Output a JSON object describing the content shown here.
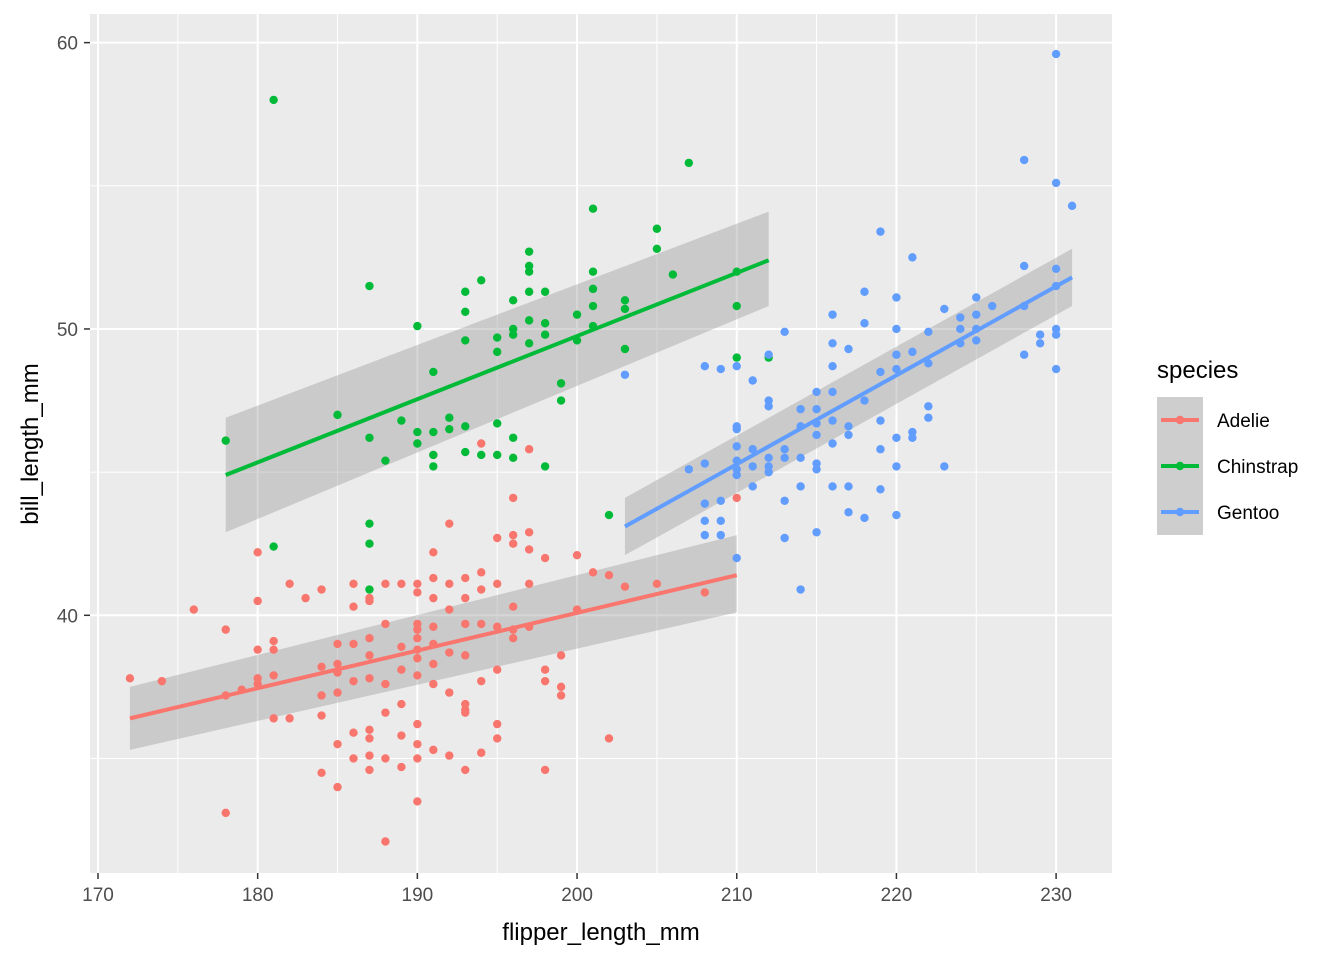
{
  "chart_data": {
    "type": "scatter",
    "xlabel": "flipper_length_mm",
    "ylabel": "bill_length_mm",
    "xlim": [
      169.5,
      233.5
    ],
    "ylim": [
      31.0,
      61.0
    ],
    "xticks": [
      170,
      180,
      190,
      200,
      210,
      220,
      230
    ],
    "yticks": [
      40,
      50,
      60
    ],
    "grid": true,
    "legend": {
      "title": "species",
      "placement": "right"
    },
    "background": "#EBEBEB",
    "band_color": "#999999",
    "series": [
      {
        "name": "Adelie",
        "color": "#F8766D",
        "fit": {
          "x": [
            172,
            210
          ],
          "y": [
            36.4,
            41.4
          ],
          "se_lower": [
            35.3,
            40.1
          ],
          "se_upper": [
            37.5,
            42.8
          ]
        },
        "points": [
          [
            172,
            37.8
          ],
          [
            174,
            37.7
          ],
          [
            176,
            40.2
          ],
          [
            178,
            39.5
          ],
          [
            178,
            37.2
          ],
          [
            178,
            33.1
          ],
          [
            179,
            37.4
          ],
          [
            180,
            42.2
          ],
          [
            180,
            40.5
          ],
          [
            180,
            38.8
          ],
          [
            180,
            37.8
          ],
          [
            180,
            37.6
          ],
          [
            181,
            39.1
          ],
          [
            181,
            38.8
          ],
          [
            181,
            37.9
          ],
          [
            181,
            36.4
          ],
          [
            182,
            41.1
          ],
          [
            182,
            36.4
          ],
          [
            183,
            40.6
          ],
          [
            184,
            40.9
          ],
          [
            184,
            38.2
          ],
          [
            184,
            37.2
          ],
          [
            184,
            36.5
          ],
          [
            184,
            34.5
          ],
          [
            185,
            39.0
          ],
          [
            185,
            38.3
          ],
          [
            185,
            38.0
          ],
          [
            185,
            37.3
          ],
          [
            185,
            35.5
          ],
          [
            185,
            34.0
          ],
          [
            186,
            41.1
          ],
          [
            186,
            40.3
          ],
          [
            186,
            39.0
          ],
          [
            186,
            37.7
          ],
          [
            186,
            35.9
          ],
          [
            186,
            35.0
          ],
          [
            187,
            40.6
          ],
          [
            187,
            40.5
          ],
          [
            187,
            39.2
          ],
          [
            187,
            38.6
          ],
          [
            187,
            37.8
          ],
          [
            187,
            36.0
          ],
          [
            187,
            35.7
          ],
          [
            187,
            34.6
          ],
          [
            187,
            35.1
          ],
          [
            188,
            41.1
          ],
          [
            188,
            39.7
          ],
          [
            188,
            37.6
          ],
          [
            188,
            36.6
          ],
          [
            188,
            35.0
          ],
          [
            188,
            32.1
          ],
          [
            189,
            41.1
          ],
          [
            189,
            38.9
          ],
          [
            189,
            38.1
          ],
          [
            189,
            36.9
          ],
          [
            189,
            35.8
          ],
          [
            189,
            34.7
          ],
          [
            190,
            41.1
          ],
          [
            190,
            40.8
          ],
          [
            190,
            39.7
          ],
          [
            190,
            39.5
          ],
          [
            190,
            39.2
          ],
          [
            190,
            38.8
          ],
          [
            190,
            38.5
          ],
          [
            190,
            37.9
          ],
          [
            190,
            36.2
          ],
          [
            190,
            35.5
          ],
          [
            190,
            35.0
          ],
          [
            190,
            33.5
          ],
          [
            191,
            45.6
          ],
          [
            191,
            42.2
          ],
          [
            191,
            41.3
          ],
          [
            191,
            40.6
          ],
          [
            191,
            39.6
          ],
          [
            191,
            39.0
          ],
          [
            191,
            38.3
          ],
          [
            191,
            37.6
          ],
          [
            191,
            35.3
          ],
          [
            192,
            43.2
          ],
          [
            192,
            41.1
          ],
          [
            192,
            40.2
          ],
          [
            192,
            38.7
          ],
          [
            192,
            37.3
          ],
          [
            192,
            35.1
          ],
          [
            193,
            41.3
          ],
          [
            193,
            40.6
          ],
          [
            193,
            39.7
          ],
          [
            193,
            38.6
          ],
          [
            193,
            36.9
          ],
          [
            193,
            36.7
          ],
          [
            193,
            36.6
          ],
          [
            193,
            34.6
          ],
          [
            194,
            46.0
          ],
          [
            194,
            41.5
          ],
          [
            194,
            40.9
          ],
          [
            194,
            39.7
          ],
          [
            194,
            37.7
          ],
          [
            194,
            35.2
          ],
          [
            195,
            42.7
          ],
          [
            195,
            41.1
          ],
          [
            195,
            39.6
          ],
          [
            195,
            38.1
          ],
          [
            195,
            36.2
          ],
          [
            195,
            35.7
          ],
          [
            196,
            44.1
          ],
          [
            196,
            42.8
          ],
          [
            196,
            42.5
          ],
          [
            196,
            40.3
          ],
          [
            196,
            39.5
          ],
          [
            196,
            39.2
          ],
          [
            197,
            45.8
          ],
          [
            197,
            42.9
          ],
          [
            197,
            42.3
          ],
          [
            197,
            41.1
          ],
          [
            197,
            39.6
          ],
          [
            198,
            42.0
          ],
          [
            198,
            38.1
          ],
          [
            198,
            37.7
          ],
          [
            198,
            34.6
          ],
          [
            199,
            38.6
          ],
          [
            199,
            37.5
          ],
          [
            199,
            37.2
          ],
          [
            200,
            42.1
          ],
          [
            200,
            40.2
          ],
          [
            201,
            41.5
          ],
          [
            202,
            41.4
          ],
          [
            202,
            35.7
          ],
          [
            203,
            41.0
          ],
          [
            205,
            41.1
          ],
          [
            208,
            40.8
          ],
          [
            210,
            44.1
          ]
        ]
      },
      {
        "name": "Chinstrap",
        "color": "#00BA38",
        "fit": {
          "x": [
            178,
            212
          ],
          "y": [
            44.9,
            52.4
          ],
          "se_lower": [
            42.9,
            50.8
          ],
          "se_upper": [
            46.9,
            54.1
          ]
        },
        "points": [
          [
            178,
            46.1
          ],
          [
            181,
            58.0
          ],
          [
            181,
            42.4
          ],
          [
            185,
            47.0
          ],
          [
            187,
            51.5
          ],
          [
            187,
            46.2
          ],
          [
            187,
            43.2
          ],
          [
            187,
            42.5
          ],
          [
            187,
            40.9
          ],
          [
            188,
            45.4
          ],
          [
            189,
            46.8
          ],
          [
            190,
            50.1
          ],
          [
            190,
            46.4
          ],
          [
            190,
            46.0
          ],
          [
            191,
            48.5
          ],
          [
            191,
            46.4
          ],
          [
            191,
            45.6
          ],
          [
            191,
            45.2
          ],
          [
            192,
            46.9
          ],
          [
            192,
            46.5
          ],
          [
            193,
            51.3
          ],
          [
            193,
            50.6
          ],
          [
            193,
            49.6
          ],
          [
            193,
            46.6
          ],
          [
            193,
            45.7
          ],
          [
            194,
            51.7
          ],
          [
            194,
            45.6
          ],
          [
            195,
            49.7
          ],
          [
            195,
            49.2
          ],
          [
            195,
            46.7
          ],
          [
            195,
            45.6
          ],
          [
            196,
            51.0
          ],
          [
            196,
            50.0
          ],
          [
            196,
            49.8
          ],
          [
            196,
            46.2
          ],
          [
            196,
            45.5
          ],
          [
            197,
            52.7
          ],
          [
            197,
            52.2
          ],
          [
            197,
            52.0
          ],
          [
            197,
            51.3
          ],
          [
            197,
            50.3
          ],
          [
            197,
            49.5
          ],
          [
            198,
            51.3
          ],
          [
            198,
            50.2
          ],
          [
            198,
            49.8
          ],
          [
            198,
            45.2
          ],
          [
            199,
            48.1
          ],
          [
            199,
            47.5
          ],
          [
            200,
            50.5
          ],
          [
            200,
            49.6
          ],
          [
            201,
            54.2
          ],
          [
            201,
            52.0
          ],
          [
            201,
            51.4
          ],
          [
            201,
            50.8
          ],
          [
            201,
            50.1
          ],
          [
            202,
            43.5
          ],
          [
            203,
            51.0
          ],
          [
            203,
            50.7
          ],
          [
            203,
            49.3
          ],
          [
            205,
            53.5
          ],
          [
            205,
            52.8
          ],
          [
            206,
            51.9
          ],
          [
            207,
            55.8
          ],
          [
            210,
            52.0
          ],
          [
            210,
            50.8
          ],
          [
            210,
            49.0
          ],
          [
            212,
            49.0
          ]
        ]
      },
      {
        "name": "Gentoo",
        "color": "#619CFF",
        "fit": {
          "x": [
            203,
            231
          ],
          "y": [
            43.1,
            51.8
          ],
          "se_lower": [
            42.1,
            50.8
          ],
          "se_upper": [
            44.1,
            52.8
          ]
        },
        "points": [
          [
            203,
            48.4
          ],
          [
            207,
            45.1
          ],
          [
            208,
            48.7
          ],
          [
            208,
            45.3
          ],
          [
            208,
            43.9
          ],
          [
            208,
            43.3
          ],
          [
            208,
            42.8
          ],
          [
            209,
            48.6
          ],
          [
            209,
            44.0
          ],
          [
            209,
            43.3
          ],
          [
            209,
            42.8
          ],
          [
            210,
            48.7
          ],
          [
            210,
            46.6
          ],
          [
            210,
            46.5
          ],
          [
            210,
            45.9
          ],
          [
            210,
            45.4
          ],
          [
            210,
            45.1
          ],
          [
            210,
            44.9
          ],
          [
            210,
            42.0
          ],
          [
            211,
            48.2
          ],
          [
            211,
            45.8
          ],
          [
            211,
            45.2
          ],
          [
            211,
            44.5
          ],
          [
            212,
            49.1
          ],
          [
            212,
            47.5
          ],
          [
            212,
            47.3
          ],
          [
            212,
            45.5
          ],
          [
            212,
            45.2
          ],
          [
            212,
            45.0
          ],
          [
            213,
            49.9
          ],
          [
            213,
            45.8
          ],
          [
            213,
            45.5
          ],
          [
            213,
            44.0
          ],
          [
            213,
            42.7
          ],
          [
            214,
            47.2
          ],
          [
            214,
            46.6
          ],
          [
            214,
            45.5
          ],
          [
            214,
            44.5
          ],
          [
            214,
            40.9
          ],
          [
            215,
            47.8
          ],
          [
            215,
            47.2
          ],
          [
            215,
            46.7
          ],
          [
            215,
            46.3
          ],
          [
            215,
            45.3
          ],
          [
            215,
            45.1
          ],
          [
            215,
            42.9
          ],
          [
            216,
            50.5
          ],
          [
            216,
            49.5
          ],
          [
            216,
            48.7
          ],
          [
            216,
            47.8
          ],
          [
            216,
            46.8
          ],
          [
            216,
            46.0
          ],
          [
            216,
            44.5
          ],
          [
            217,
            49.3
          ],
          [
            217,
            46.6
          ],
          [
            217,
            46.3
          ],
          [
            217,
            44.5
          ],
          [
            217,
            43.6
          ],
          [
            218,
            51.3
          ],
          [
            218,
            50.2
          ],
          [
            218,
            47.5
          ],
          [
            218,
            43.4
          ],
          [
            219,
            53.4
          ],
          [
            219,
            48.5
          ],
          [
            219,
            46.8
          ],
          [
            219,
            45.8
          ],
          [
            219,
            44.4
          ],
          [
            220,
            51.1
          ],
          [
            220,
            50.0
          ],
          [
            220,
            49.1
          ],
          [
            220,
            48.6
          ],
          [
            220,
            46.2
          ],
          [
            220,
            45.2
          ],
          [
            220,
            43.5
          ],
          [
            221,
            52.5
          ],
          [
            221,
            49.2
          ],
          [
            221,
            46.4
          ],
          [
            221,
            46.2
          ],
          [
            222,
            49.9
          ],
          [
            222,
            48.8
          ],
          [
            222,
            47.3
          ],
          [
            222,
            46.9
          ],
          [
            223,
            50.7
          ],
          [
            223,
            45.2
          ],
          [
            224,
            50.4
          ],
          [
            224,
            50.0
          ],
          [
            224,
            49.5
          ],
          [
            225,
            51.1
          ],
          [
            225,
            50.5
          ],
          [
            225,
            50.0
          ],
          [
            225,
            49.6
          ],
          [
            226,
            50.8
          ],
          [
            228,
            55.9
          ],
          [
            228,
            52.2
          ],
          [
            228,
            50.8
          ],
          [
            228,
            49.1
          ],
          [
            229,
            49.8
          ],
          [
            229,
            49.5
          ],
          [
            230,
            59.6
          ],
          [
            230,
            55.1
          ],
          [
            230,
            52.1
          ],
          [
            230,
            51.5
          ],
          [
            230,
            50.0
          ],
          [
            230,
            49.8
          ],
          [
            230,
            48.6
          ],
          [
            231,
            54.3
          ]
        ]
      }
    ]
  }
}
